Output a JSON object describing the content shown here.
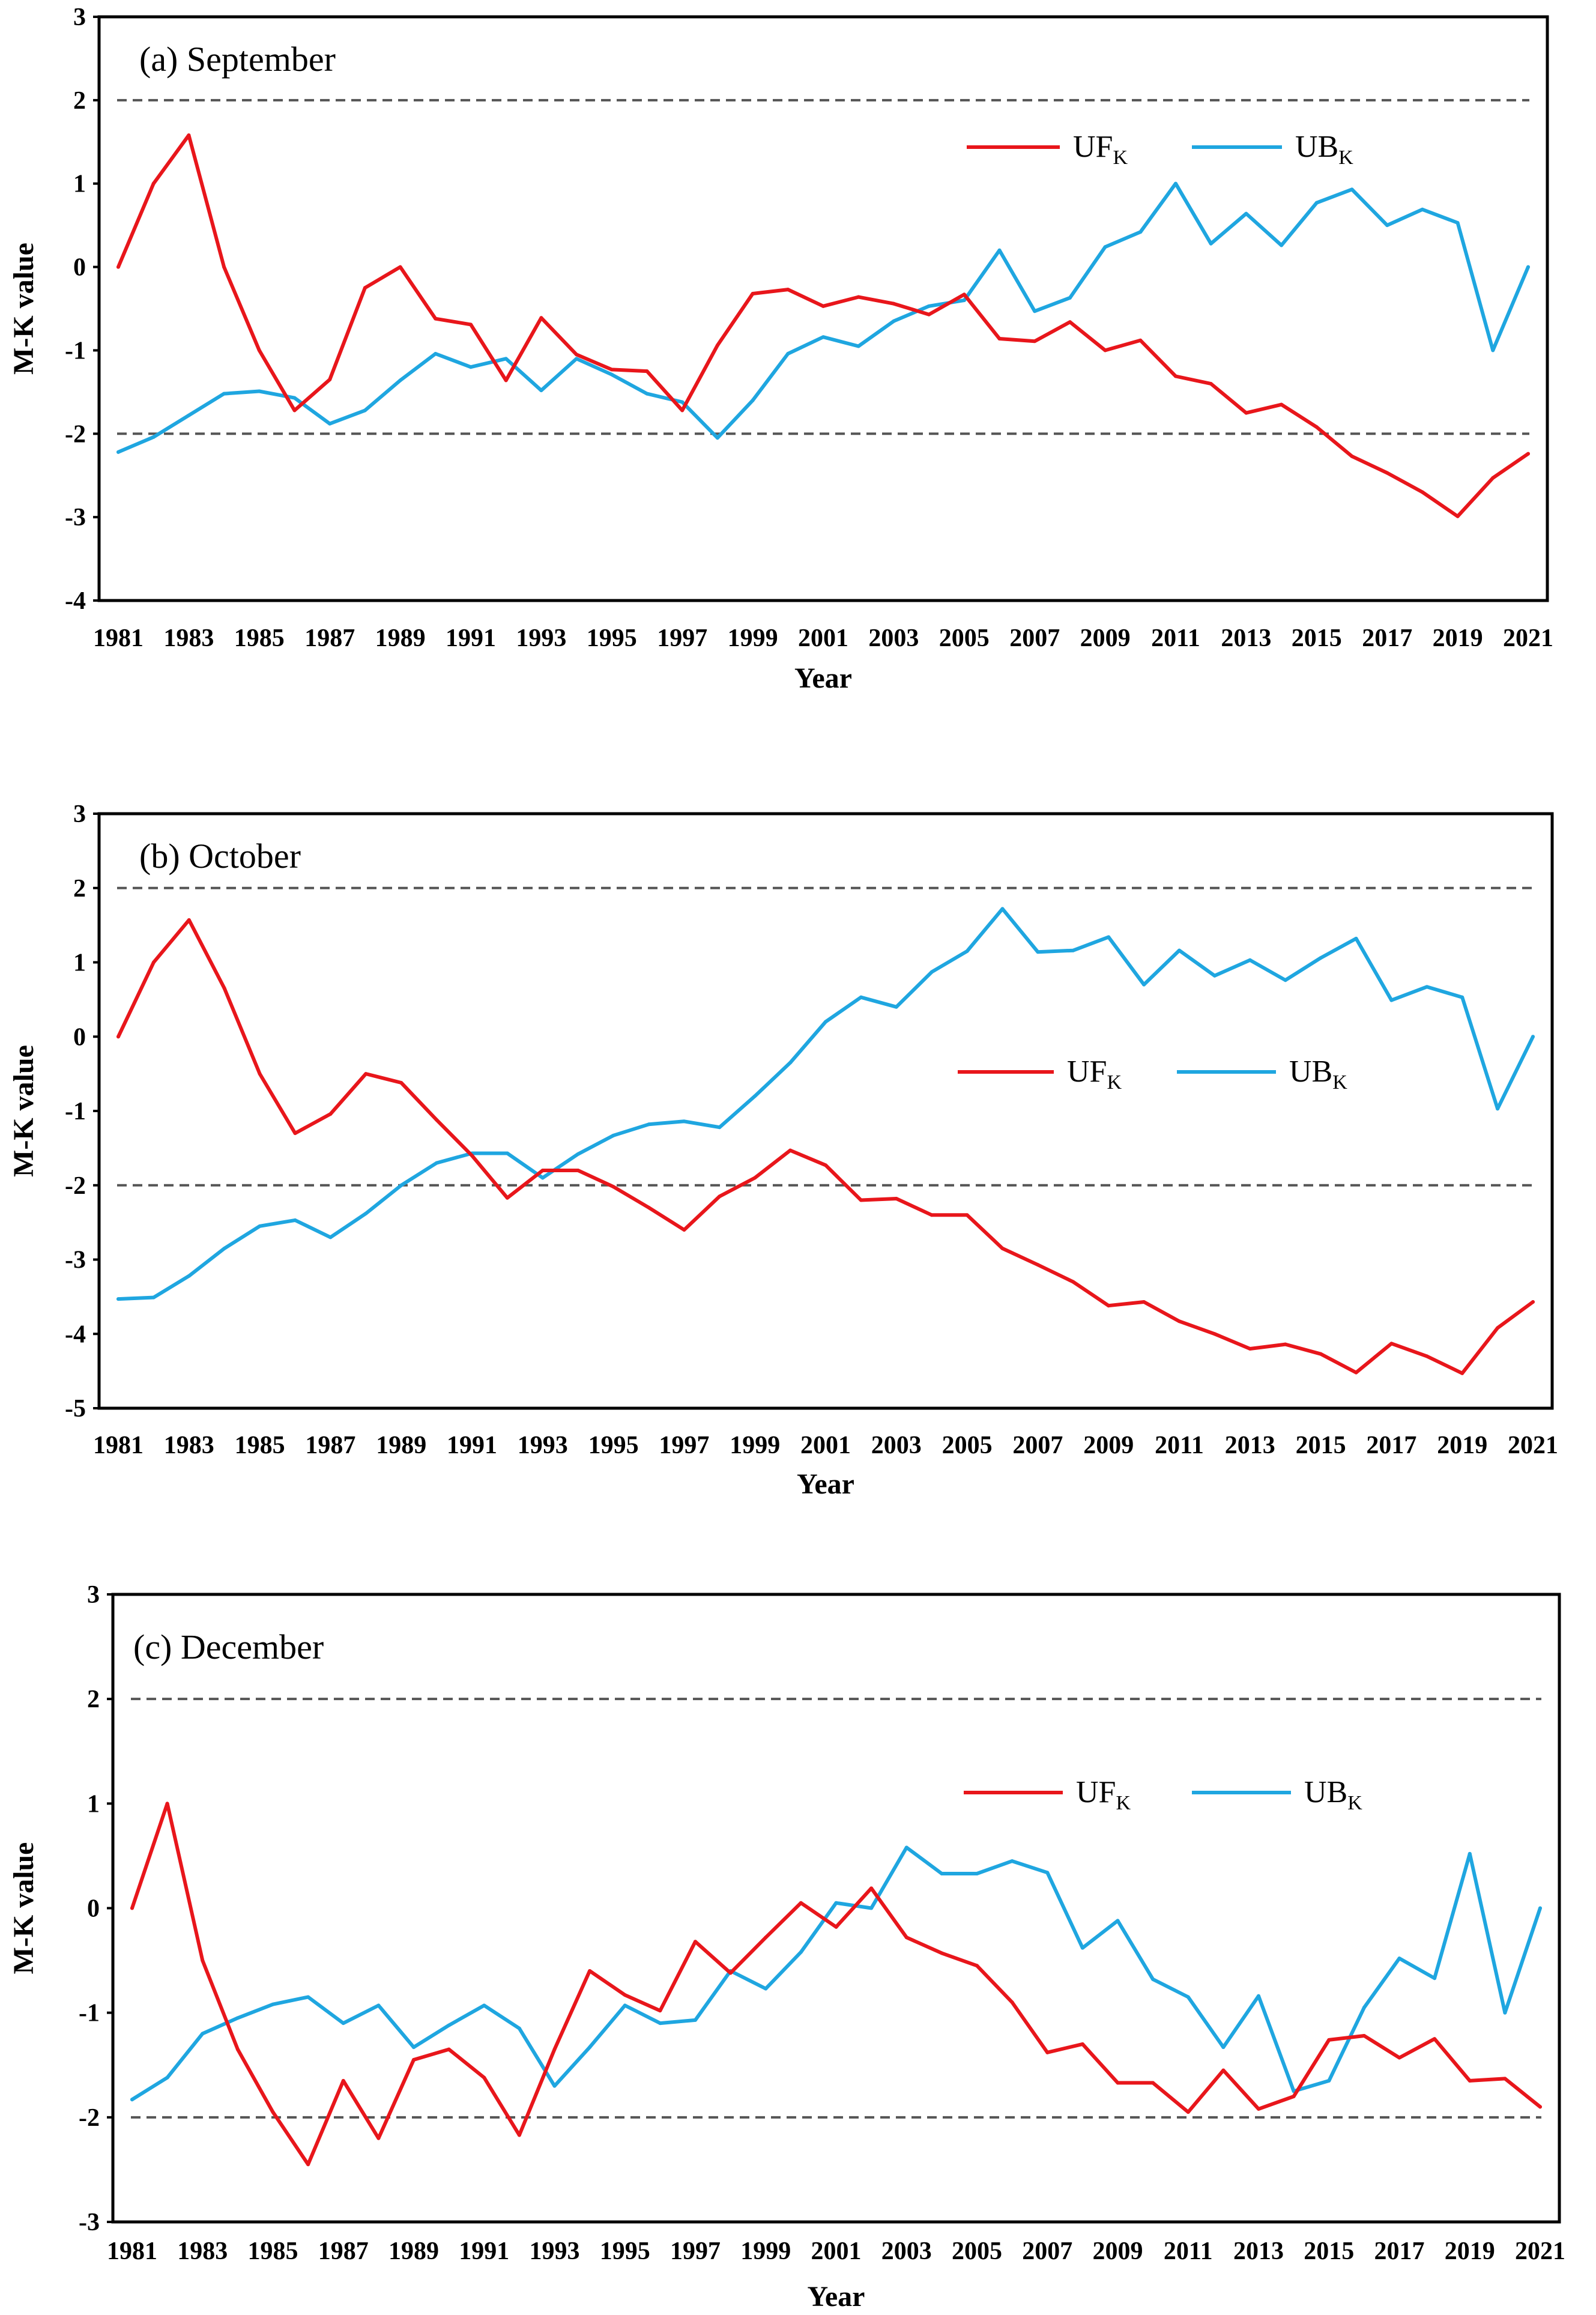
{
  "chart_data": [
    {
      "type": "line",
      "title": "(a) September",
      "xlabel": "Year",
      "ylabel": "M-K value",
      "ylim": [
        -4,
        3
      ],
      "yticks": [
        "-4",
        "-3",
        "-2",
        "-1",
        "0",
        "1",
        "2",
        "3"
      ],
      "x": [
        1981,
        1982,
        1983,
        1984,
        1985,
        1986,
        1987,
        1988,
        1989,
        1990,
        1991,
        1992,
        1993,
        1994,
        1995,
        1996,
        1997,
        1998,
        1999,
        2000,
        2001,
        2002,
        2003,
        2004,
        2005,
        2006,
        2007,
        2008,
        2009,
        2010,
        2011,
        2012,
        2013,
        2014,
        2015,
        2016,
        2017,
        2018,
        2019,
        2020,
        2021
      ],
      "xtick_labels": [
        "1981",
        "1983",
        "1985",
        "1987",
        "1989",
        "1991",
        "1993",
        "1995",
        "1997",
        "1999",
        "2001",
        "2003",
        "2005",
        "2007",
        "2009",
        "2011",
        "2013",
        "2015",
        "2017",
        "2019",
        "2021"
      ],
      "reference_lines": [
        2,
        -2
      ],
      "legend": [
        "UF",
        "UB"
      ],
      "legend_subscript": "K",
      "series": [
        {
          "name": "UF",
          "color": "#e8161b",
          "values": [
            0,
            1.0,
            1.58,
            0,
            -1.0,
            -1.72,
            -1.35,
            -0.25,
            0,
            -0.62,
            -0.69,
            -1.36,
            -0.61,
            -1.05,
            -1.23,
            -1.25,
            -1.72,
            -0.94,
            -0.32,
            -0.27,
            -0.47,
            -0.36,
            -0.44,
            -0.57,
            -0.33,
            -0.86,
            -0.89,
            -0.66,
            -1.0,
            -0.88,
            -1.31,
            -1.4,
            -1.75,
            -1.65,
            -1.92,
            -2.27,
            -2.47,
            -2.7,
            -2.99,
            -2.53,
            -2.24
          ]
        },
        {
          "name": "UB",
          "color": "#1fa6e0",
          "values": [
            -2.22,
            -2.04,
            -1.78,
            -1.52,
            -1.49,
            -1.57,
            -1.88,
            -1.72,
            -1.36,
            -1.04,
            -1.2,
            -1.1,
            -1.48,
            -1.1,
            -1.29,
            -1.52,
            -1.62,
            -2.05,
            -1.6,
            -1.04,
            -0.84,
            -0.95,
            -0.65,
            -0.47,
            -0.4,
            0.2,
            -0.53,
            -0.37,
            0.24,
            0.42,
            1.0,
            0.28,
            0.64,
            0.26,
            0.77,
            0.93,
            0.5,
            0.69,
            0.53,
            -1.0,
            0.0
          ]
        }
      ]
    },
    {
      "type": "line",
      "title": "(b) October",
      "xlabel": "Year",
      "ylabel": "M-K value",
      "ylim": [
        -5,
        3
      ],
      "yticks": [
        "-5",
        "-4",
        "-3",
        "-2",
        "-1",
        "0",
        "1",
        "2",
        "3"
      ],
      "x": [
        1981,
        1982,
        1983,
        1984,
        1985,
        1986,
        1987,
        1988,
        1989,
        1990,
        1991,
        1992,
        1993,
        1994,
        1995,
        1996,
        1997,
        1998,
        1999,
        2000,
        2001,
        2002,
        2003,
        2004,
        2005,
        2006,
        2007,
        2008,
        2009,
        2010,
        2011,
        2012,
        2013,
        2014,
        2015,
        2016,
        2017,
        2018,
        2019,
        2020,
        2021
      ],
      "xtick_labels": [
        "1981",
        "1983",
        "1985",
        "1987",
        "1989",
        "1991",
        "1993",
        "1995",
        "1997",
        "1999",
        "2001",
        "2003",
        "2005",
        "2007",
        "2009",
        "2011",
        "2013",
        "2015",
        "2017",
        "2019",
        "2021"
      ],
      "reference_lines": [
        2,
        -2
      ],
      "legend": [
        "UF",
        "UB"
      ],
      "legend_subscript": "K",
      "series": [
        {
          "name": "UF",
          "color": "#e8161b",
          "values": [
            0,
            1.0,
            1.57,
            0.65,
            -0.5,
            -1.3,
            -1.04,
            -0.5,
            -0.62,
            -1.12,
            -1.6,
            -2.17,
            -1.8,
            -1.8,
            -2.02,
            -2.3,
            -2.6,
            -2.15,
            -1.9,
            -1.53,
            -1.73,
            -2.2,
            -2.18,
            -2.4,
            -2.4,
            -2.85,
            -3.07,
            -3.3,
            -3.62,
            -3.57,
            -3.83,
            -4.0,
            -4.2,
            -4.14,
            -4.27,
            -4.52,
            -4.13,
            -4.3,
            -4.53,
            -3.92,
            -3.57
          ]
        },
        {
          "name": "UB",
          "color": "#1fa6e0",
          "values": [
            -3.53,
            -3.51,
            -3.22,
            -2.85,
            -2.55,
            -2.47,
            -2.7,
            -2.38,
            -2.0,
            -1.7,
            -1.57,
            -1.57,
            -1.9,
            -1.58,
            -1.33,
            -1.18,
            -1.14,
            -1.22,
            -0.8,
            -0.35,
            0.2,
            0.53,
            0.4,
            0.87,
            1.15,
            1.72,
            1.14,
            1.16,
            1.34,
            0.7,
            1.16,
            0.82,
            1.03,
            0.76,
            1.06,
            1.32,
            0.49,
            0.67,
            0.53,
            -0.97,
            0.0
          ]
        }
      ]
    },
    {
      "type": "line",
      "title": "(c) December",
      "xlabel": "Year",
      "ylabel": "M-K value",
      "ylim": [
        -3,
        3
      ],
      "yticks": [
        "-3",
        "-2",
        "-1",
        "0",
        "1",
        "2",
        "3"
      ],
      "x": [
        1981,
        1982,
        1983,
        1984,
        1985,
        1986,
        1987,
        1988,
        1989,
        1990,
        1991,
        1992,
        1993,
        1994,
        1995,
        1996,
        1997,
        1998,
        1999,
        2000,
        2001,
        2002,
        2003,
        2004,
        2005,
        2006,
        2007,
        2008,
        2009,
        2010,
        2011,
        2012,
        2013,
        2014,
        2015,
        2016,
        2017,
        2018,
        2019,
        2020,
        2021
      ],
      "xtick_labels": [
        "1981",
        "1983",
        "1985",
        "1987",
        "1989",
        "1991",
        "1993",
        "1995",
        "1997",
        "1999",
        "2001",
        "2003",
        "2005",
        "2007",
        "2009",
        "2011",
        "2013",
        "2015",
        "2017",
        "2019",
        "2021"
      ],
      "reference_lines": [
        2,
        -2
      ],
      "legend": [
        "UF",
        "UB"
      ],
      "legend_subscript": "K",
      "series": [
        {
          "name": "UF",
          "color": "#e8161b",
          "values": [
            0,
            1.0,
            -0.5,
            -1.35,
            -1.95,
            -2.45,
            -1.65,
            -2.2,
            -1.45,
            -1.35,
            -1.62,
            -2.17,
            -1.35,
            -0.6,
            -0.83,
            -0.98,
            -0.32,
            -0.62,
            -0.28,
            0.05,
            -0.18,
            0.19,
            -0.28,
            -0.43,
            -0.55,
            -0.9,
            -1.38,
            -1.3,
            -1.67,
            -1.67,
            -1.95,
            -1.55,
            -1.92,
            -1.8,
            -1.26,
            -1.22,
            -1.43,
            -1.25,
            -1.65,
            -1.63,
            -1.9
          ]
        },
        {
          "name": "UB",
          "color": "#1fa6e0",
          "values": [
            -1.83,
            -1.62,
            -1.2,
            -1.05,
            -0.92,
            -0.85,
            -1.1,
            -0.93,
            -1.33,
            -1.12,
            -0.93,
            -1.15,
            -1.7,
            -1.33,
            -0.93,
            -1.1,
            -1.07,
            -0.6,
            -0.77,
            -0.42,
            0.05,
            0.0,
            0.58,
            0.33,
            0.33,
            0.45,
            0.34,
            -0.38,
            -0.12,
            -0.68,
            -0.85,
            -1.33,
            -0.84,
            -1.75,
            -1.65,
            -0.95,
            -0.48,
            -0.67,
            0.52,
            -1.0,
            0.0
          ]
        }
      ]
    }
  ]
}
